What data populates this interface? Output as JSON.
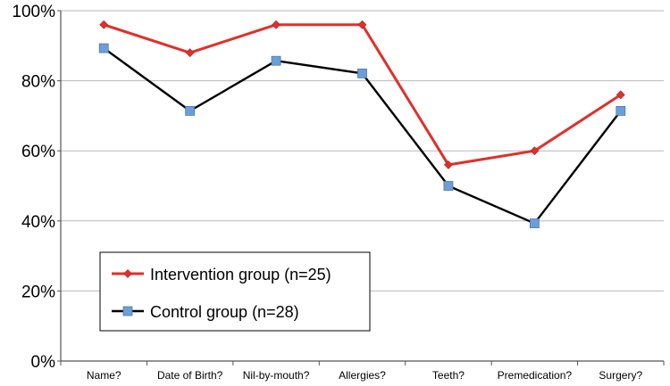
{
  "chart_data": {
    "type": "line",
    "categories": [
      "Name?",
      "Date of Birth?",
      "Nil-by-mouth?",
      "Allergies?",
      "Teeth?",
      "Premedication?",
      "Surgery?"
    ],
    "series": [
      {
        "name": "Intervention group (n=25)",
        "values": [
          96,
          88,
          96,
          96,
          56,
          60,
          76
        ],
        "color": "#e0302a",
        "marker": "diamond"
      },
      {
        "name": "Control group (n=28)",
        "values": [
          89.3,
          71.4,
          85.7,
          82.1,
          50,
          39.3,
          71.4
        ],
        "color": "#000000",
        "marker": "square",
        "marker_color": "#6c9fd9"
      }
    ],
    "ylim": [
      0,
      100
    ],
    "yticks": [
      {
        "value": 0,
        "label": "0%"
      },
      {
        "value": 20,
        "label": "20%"
      },
      {
        "value": 40,
        "label": "40%"
      },
      {
        "value": 60,
        "label": "60%"
      },
      {
        "value": 80,
        "label": "80%"
      },
      {
        "value": 100,
        "label": "100%"
      }
    ],
    "grid": true,
    "legend_position": "bottom-left"
  }
}
